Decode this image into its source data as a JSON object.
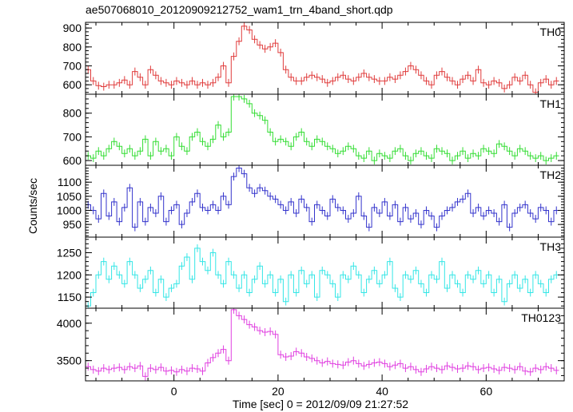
{
  "chart_data": {
    "type": "line",
    "title": "ae507068010_20120909212752_wam1_trn_4band_short.qdp",
    "xlabel": "Time [sec] 0 = 2012/09/09 21:27:52",
    "ylabel": "Counts/sec",
    "xlim": [
      -17,
      75
    ],
    "x_ticks": [
      0,
      20,
      40,
      60
    ],
    "x_tick_labels": [
      "0",
      "20",
      "40",
      "60"
    ],
    "bin_width": 1,
    "x": [
      -16.5,
      -15.5,
      -14.5,
      -13.5,
      -12.5,
      -11.5,
      -10.5,
      -9.5,
      -8.5,
      -7.5,
      -6.5,
      -5.5,
      -4.5,
      -3.5,
      -2.5,
      -1.5,
      -0.5,
      0.5,
      1.5,
      2.5,
      3.5,
      4.5,
      5.5,
      6.5,
      7.5,
      8.5,
      9.5,
      10.5,
      11.5,
      12.5,
      13.5,
      14.5,
      15.5,
      16.5,
      17.5,
      18.5,
      19.5,
      20.5,
      21.5,
      22.5,
      23.5,
      24.5,
      25.5,
      26.5,
      27.5,
      28.5,
      29.5,
      30.5,
      31.5,
      32.5,
      33.5,
      34.5,
      35.5,
      36.5,
      37.5,
      38.5,
      39.5,
      40.5,
      41.5,
      42.5,
      43.5,
      44.5,
      45.5,
      46.5,
      47.5,
      48.5,
      49.5,
      50.5,
      51.5,
      52.5,
      53.5,
      54.5,
      55.5,
      56.5,
      57.5,
      58.5,
      59.5,
      60.5,
      61.5,
      62.5,
      63.5,
      64.5,
      65.5,
      66.5,
      67.5,
      68.5,
      69.5,
      70.5,
      71.5,
      72.5,
      73.5
    ],
    "series": [
      {
        "name": "TH0",
        "color": "#e03c3c",
        "ylim": [
          550,
          930
        ],
        "y_ticks": [
          600,
          700,
          800,
          900
        ],
        "y_tick_labels": [
          "600",
          "700",
          "800",
          "900"
        ],
        "values": [
          680,
          620,
          595,
          590,
          600,
          600,
          610,
          625,
          600,
          670,
          640,
          600,
          680,
          650,
          620,
          610,
          600,
          620,
          610,
          600,
          620,
          600,
          610,
          600,
          610,
          640,
          700,
          610,
          750,
          830,
          910,
          890,
          840,
          810,
          790,
          800,
          820,
          770,
          680,
          640,
          620,
          620,
          640,
          650,
          640,
          630,
          610,
          620,
          640,
          650,
          630,
          620,
          640,
          660,
          640,
          630,
          620,
          620,
          640,
          630,
          650,
          670,
          700,
          680,
          650,
          620,
          600,
          650,
          670,
          640,
          620,
          600,
          630,
          650,
          620,
          680,
          610,
          600,
          620,
          610,
          580,
          600,
          640,
          620,
          650,
          600,
          560,
          610,
          630,
          600,
          620
        ]
      },
      {
        "name": "TH1",
        "color": "#33dd33",
        "ylim": [
          580,
          880
        ],
        "y_ticks": [
          600,
          700,
          800
        ],
        "y_tick_labels": [
          "600",
          "700",
          "800"
        ],
        "values": [
          620,
          610,
          640,
          620,
          650,
          680,
          660,
          630,
          650,
          620,
          640,
          690,
          620,
          680,
          640,
          650,
          620,
          700,
          660,
          640,
          700,
          720,
          680,
          660,
          690,
          750,
          700,
          720,
          870,
          870,
          860,
          840,
          800,
          790,
          770,
          720,
          680,
          690,
          680,
          660,
          700,
          720,
          680,
          660,
          690,
          680,
          660,
          650,
          630,
          640,
          660,
          650,
          620,
          610,
          640,
          600,
          630,
          620,
          610,
          640,
          650,
          620,
          600,
          630,
          640,
          620,
          610,
          650,
          640,
          630,
          600,
          620,
          640,
          610,
          630,
          620,
          650,
          640,
          630,
          670,
          660,
          640,
          620,
          650,
          640,
          620,
          610,
          620,
          600,
          610,
          620
        ]
      },
      {
        "name": "TH2",
        "color": "#3333cc",
        "ylim": [
          905,
          1160
        ],
        "y_ticks": [
          950,
          1000,
          1050,
          1100
        ],
        "y_tick_labels": [
          "950",
          "1000",
          "1050",
          "1100"
        ],
        "values": [
          1020,
          1000,
          970,
          1060,
          980,
          1030,
          960,
          1010,
          1080,
          940,
          1030,
          960,
          1010,
          990,
          1050,
          960,
          1000,
          1020,
          950,
          990,
          1030,
          1060,
          1010,
          1000,
          1020,
          1000,
          1050,
          1020,
          1120,
          1150,
          1130,
          1080,
          1060,
          1080,
          1070,
          1050,
          1040,
          1020,
          1000,
          1030,
          990,
          1040,
          1010,
          960,
          1020,
          1000,
          980,
          1040,
          1010,
          1000,
          970,
          990,
          1050,
          980,
          940,
          1010,
          990,
          1030,
          980,
          1020,
          960,
          1010,
          970,
          990,
          950,
          1000,
          980,
          940,
          980,
          1000,
          1010,
          1030,
          1040,
          1060,
          990,
          1010,
          980,
          1000,
          990,
          960,
          1020,
          940,
          990,
          1010,
          1020,
          990,
          970,
          1010,
          1000,
          960,
          1000
        ]
      },
      {
        "name": "TH3",
        "color": "#33e6e6",
        "ylim": [
          1125,
          1285
        ],
        "y_ticks": [
          1150,
          1200,
          1250
        ],
        "y_tick_labels": [
          "1150",
          "1200",
          "1250"
        ],
        "values": [
          1130,
          1160,
          1200,
          1230,
          1190,
          1220,
          1200,
          1180,
          1230,
          1200,
          1170,
          1190,
          1210,
          1160,
          1190,
          1150,
          1170,
          1180,
          1220,
          1240,
          1190,
          1260,
          1230,
          1210,
          1250,
          1200,
          1180,
          1230,
          1200,
          1170,
          1200,
          1160,
          1190,
          1220,
          1180,
          1200,
          1160,
          1190,
          1140,
          1200,
          1160,
          1210,
          1180,
          1200,
          1150,
          1210,
          1200,
          1180,
          1150,
          1200,
          1190,
          1220,
          1200,
          1160,
          1190,
          1210,
          1180,
          1200,
          1230,
          1170,
          1150,
          1200,
          1190,
          1210,
          1180,
          1160,
          1200,
          1190,
          1230,
          1170,
          1200,
          1180,
          1160,
          1200,
          1190,
          1210,
          1180,
          1200,
          1160,
          1190,
          1140,
          1180,
          1200,
          1170,
          1190,
          1160,
          1200,
          1180,
          1160,
          1190,
          1200
        ]
      },
      {
        "name": "TH0123",
        "color": "#e040e0",
        "ylim": [
          3230,
          4200
        ],
        "y_ticks": [
          3500,
          4000
        ],
        "y_tick_labels": [
          "3500",
          "4000"
        ],
        "values": [
          3420,
          3380,
          3360,
          3400,
          3380,
          3400,
          3410,
          3380,
          3420,
          3400,
          3430,
          3290,
          3400,
          3380,
          3410,
          3360,
          3370,
          3350,
          3380,
          3360,
          3400,
          3390,
          3360,
          3470,
          3540,
          3600,
          3650,
          3500,
          4180,
          4100,
          4050,
          3980,
          3950,
          3900,
          3880,
          3890,
          3850,
          3580,
          3550,
          3560,
          3620,
          3600,
          3550,
          3530,
          3500,
          3470,
          3490,
          3460,
          3450,
          3440,
          3480,
          3500,
          3460,
          3430,
          3450,
          3470,
          3480,
          3460,
          3420,
          3440,
          3460,
          3400,
          3420,
          3380,
          3350,
          3390,
          3420,
          3400,
          3380,
          3430,
          3410,
          3390,
          3400,
          3430,
          3420,
          3380,
          3400,
          3410,
          3390,
          3370,
          3410,
          3400,
          3380,
          3420,
          3360,
          3350,
          3400,
          3380,
          3420,
          3400,
          3370
        ]
      }
    ]
  }
}
